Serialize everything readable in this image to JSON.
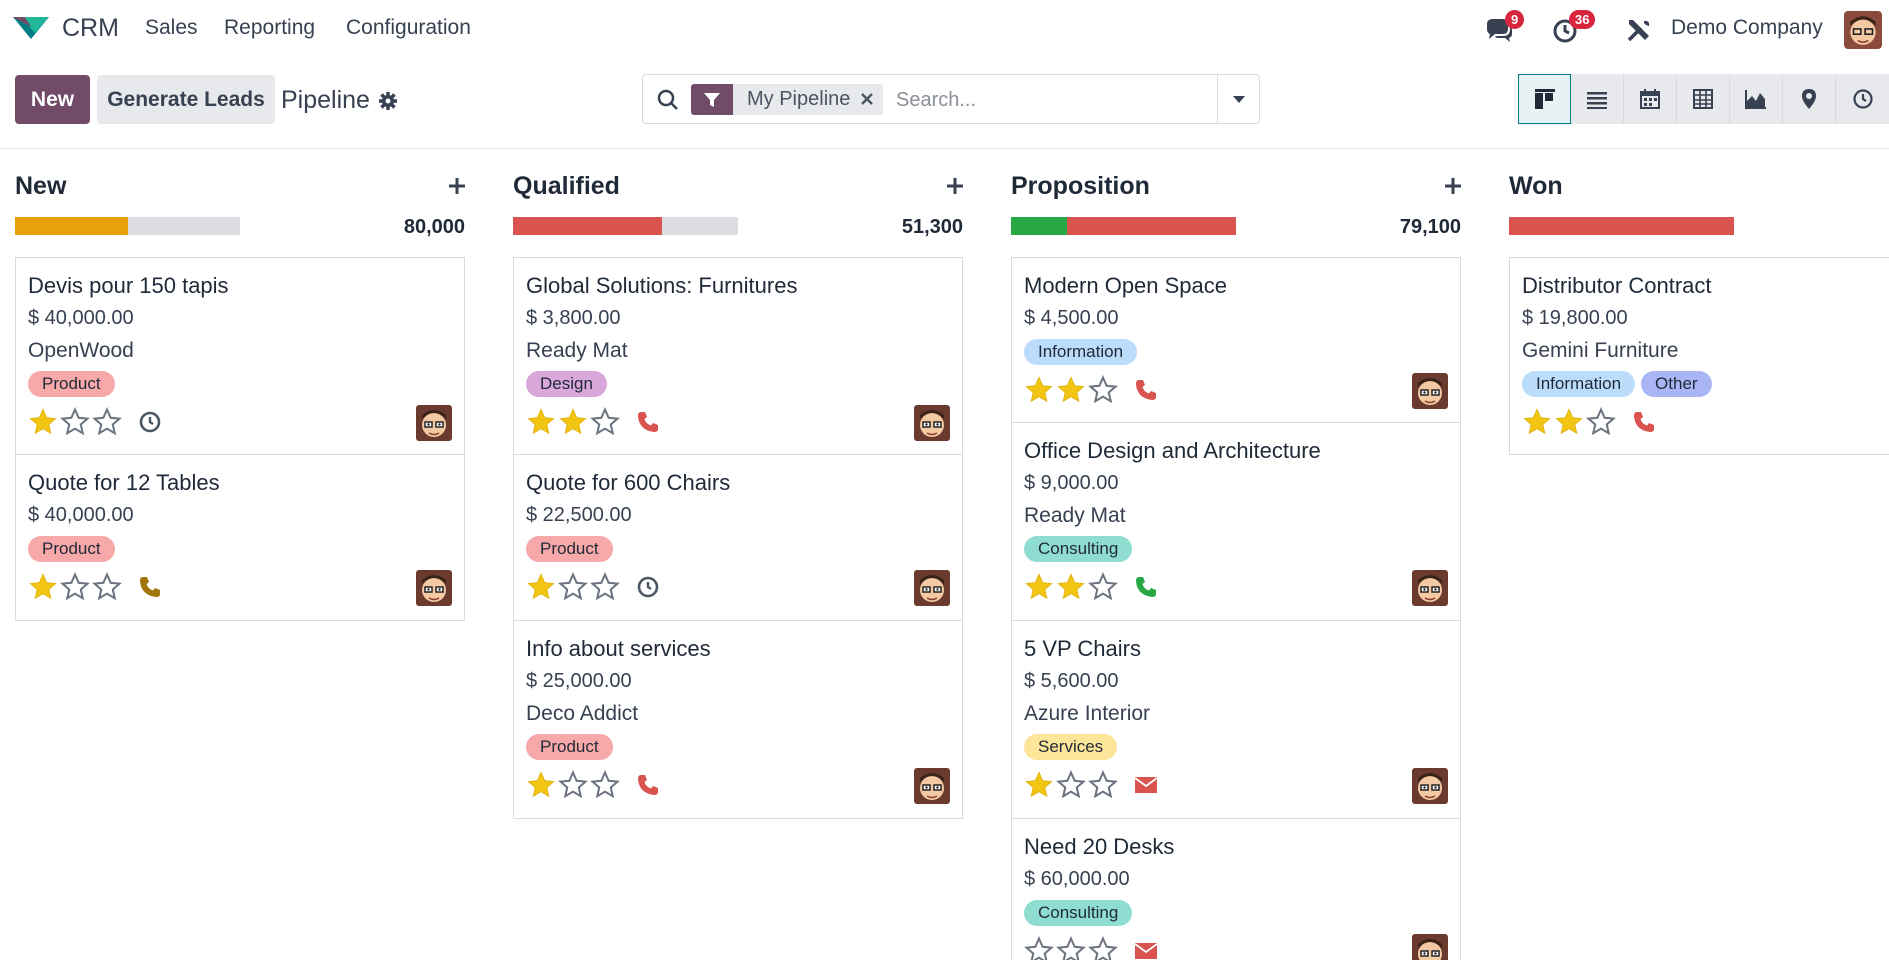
{
  "nav": {
    "app_name": "CRM",
    "menu": [
      "Sales",
      "Reporting",
      "Configuration"
    ],
    "messages_count": "9",
    "activities_count": "36",
    "company": "Demo Company"
  },
  "control": {
    "new_label": "New",
    "generate_label": "Generate Leads",
    "breadcrumb": "Pipeline",
    "facet_value": "My Pipeline",
    "search_placeholder": "Search..."
  },
  "colors": {
    "primary": "#714B67",
    "progress_orange": "#e8a10a",
    "progress_red": "#d9534f",
    "progress_green": "#28a745",
    "progress_grey": "#dcdde0",
    "tag_product": "#f7a8a8",
    "tag_design": "#d9a7d9",
    "tag_information": "#bcdcfb",
    "tag_consulting": "#8fdcd1",
    "tag_services": "#fde59a",
    "tag_other": "#aab5f5"
  },
  "columns": [
    {
      "title": "New",
      "total": "80,000",
      "progress": [
        {
          "color": "#e8a10a",
          "pct": 50
        }
      ],
      "cards": [
        {
          "title": "Devis pour 150 tapis",
          "amount": "$ 40,000.00",
          "partner": "OpenWood",
          "tags": [
            {
              "label": "Product",
              "color": "#f7a8a8"
            }
          ],
          "stars": 1,
          "activity": "clock-icon",
          "activity_color": "#4b5563"
        },
        {
          "title": "Quote for 12 Tables",
          "amount": "$ 40,000.00",
          "partner": "",
          "tags": [
            {
              "label": "Product",
              "color": "#f7a8a8"
            }
          ],
          "stars": 1,
          "activity": "phone-icon",
          "activity_color": "#a0750a"
        }
      ]
    },
    {
      "title": "Qualified",
      "total": "51,300",
      "progress": [
        {
          "color": "#d9534f",
          "pct": 66
        }
      ],
      "cards": [
        {
          "title": "Global Solutions: Furnitures",
          "amount": "$ 3,800.00",
          "partner": "Ready Mat",
          "tags": [
            {
              "label": "Design",
              "color": "#d9a7d9"
            }
          ],
          "stars": 2,
          "activity": "phone-icon",
          "activity_color": "#d9534f"
        },
        {
          "title": "Quote for 600 Chairs",
          "amount": "$ 22,500.00",
          "partner": "",
          "tags": [
            {
              "label": "Product",
              "color": "#f7a8a8"
            }
          ],
          "stars": 1,
          "activity": "clock-icon",
          "activity_color": "#4b5563"
        },
        {
          "title": "Info about services",
          "amount": "$ 25,000.00",
          "partner": "Deco Addict",
          "tags": [
            {
              "label": "Product",
              "color": "#f7a8a8"
            }
          ],
          "stars": 1,
          "activity": "phone-icon",
          "activity_color": "#d9534f"
        }
      ]
    },
    {
      "title": "Proposition",
      "total": "79,100",
      "progress": [
        {
          "color": "#28a745",
          "pct": 25
        },
        {
          "color": "#d9534f",
          "pct": 75
        }
      ],
      "cards": [
        {
          "title": "Modern Open Space",
          "amount": "$ 4,500.00",
          "partner": "",
          "tags": [
            {
              "label": "Information",
              "color": "#bcdcfb"
            }
          ],
          "stars": 2,
          "activity": "phone-icon",
          "activity_color": "#d9534f"
        },
        {
          "title": "Office Design and Architecture",
          "amount": "$ 9,000.00",
          "partner": "Ready Mat",
          "tags": [
            {
              "label": "Consulting",
              "color": "#8fdcd1"
            }
          ],
          "stars": 2,
          "activity": "phone-icon",
          "activity_color": "#28a745"
        },
        {
          "title": "5 VP Chairs",
          "amount": "$ 5,600.00",
          "partner": "Azure Interior",
          "tags": [
            {
              "label": "Services",
              "color": "#fde59a"
            }
          ],
          "stars": 1,
          "activity": "envelope-icon",
          "activity_color": "#d9534f"
        },
        {
          "title": "Need 20 Desks",
          "amount": "$ 60,000.00",
          "partner": "",
          "tags": [
            {
              "label": "Consulting",
              "color": "#8fdcd1"
            }
          ],
          "stars": 0,
          "activity": "envelope-icon",
          "activity_color": "#d9534f"
        }
      ]
    },
    {
      "title": "Won",
      "total": "",
      "progress": [
        {
          "color": "#d9534f",
          "pct": 100
        }
      ],
      "cards": [
        {
          "title": "Distributor Contract",
          "amount": "$ 19,800.00",
          "partner": "Gemini Furniture",
          "tags": [
            {
              "label": "Information",
              "color": "#bcdcfb"
            },
            {
              "label": "Other",
              "color": "#aab5f5"
            }
          ],
          "stars": 2,
          "activity": "phone-icon",
          "activity_color": "#d9534f"
        }
      ]
    }
  ]
}
